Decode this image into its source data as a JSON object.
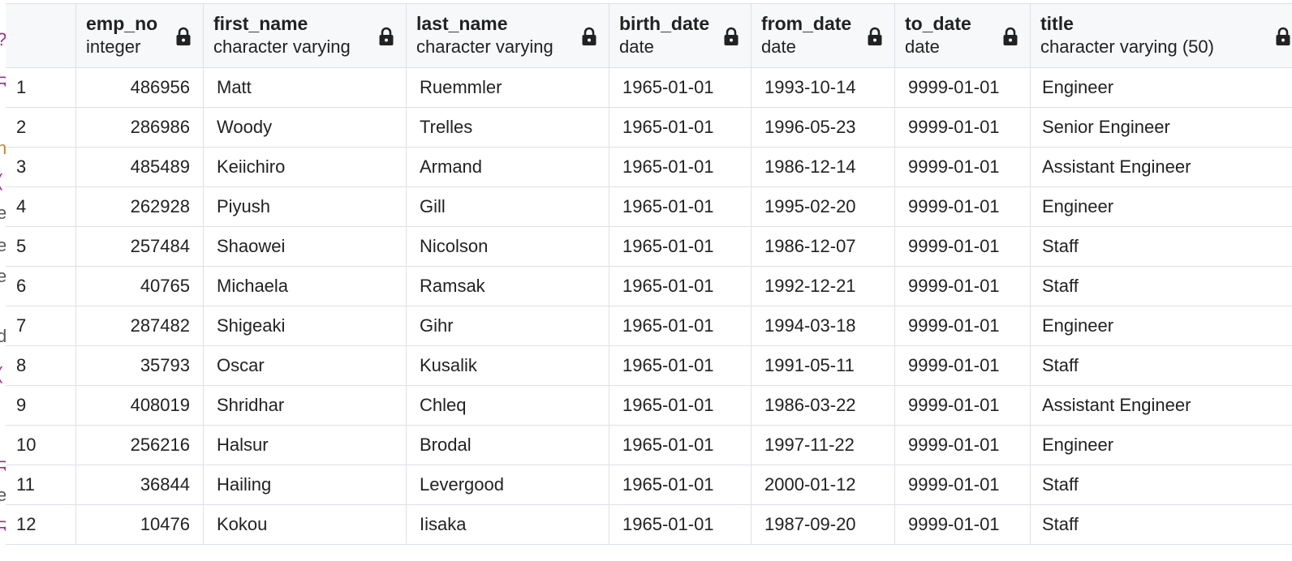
{
  "colors": {
    "grid_border": "#dde0e6",
    "header_bg": "#f7f8fa",
    "text": "#222222",
    "left_strip_purple": "#a0289a",
    "left_strip_orange": "#c8862a",
    "left_strip_gray": "#555555"
  },
  "left_strip": [
    {
      "glyph": "?",
      "color": "#a0289a"
    },
    {
      "glyph": "R",
      "color": "#a0289a"
    },
    {
      "glyph": "n",
      "color": "#c8862a"
    },
    {
      "glyph": "(",
      "color": "#a0289a"
    },
    {
      "glyph": "e",
      "color": "#555555"
    },
    {
      "glyph": "e",
      "color": "#555555"
    },
    {
      "glyph": "e",
      "color": "#555555"
    },
    {
      "glyph": "l",
      "color": "#555555"
    },
    {
      "glyph": "d",
      "color": "#555555"
    },
    {
      "glyph": "(",
      "color": "#a0289a"
    },
    {
      "glyph": "R",
      "color": "#a0289a"
    },
    {
      "glyph": "e",
      "color": "#555555"
    },
    {
      "glyph": "R",
      "color": "#a0289a"
    }
  ],
  "columns": [
    {
      "name": "emp_no",
      "type": "integer",
      "icon": "lock-icon"
    },
    {
      "name": "first_name",
      "type": "character varying",
      "icon": "lock-icon"
    },
    {
      "name": "last_name",
      "type": "character varying",
      "icon": "lock-icon"
    },
    {
      "name": "birth_date",
      "type": "date",
      "icon": "lock-icon"
    },
    {
      "name": "from_date",
      "type": "date",
      "icon": "lock-icon"
    },
    {
      "name": "to_date",
      "type": "date",
      "icon": "lock-icon"
    },
    {
      "name": "title",
      "type": "character varying (50)",
      "icon": "lock-icon"
    }
  ],
  "rows": [
    {
      "n": "1",
      "emp_no": "486956",
      "first_name": "Matt",
      "last_name": "Ruemmler",
      "birth_date": "1965-01-01",
      "from_date": "1993-10-14",
      "to_date": "9999-01-01",
      "title": "Engineer"
    },
    {
      "n": "2",
      "emp_no": "286986",
      "first_name": "Woody",
      "last_name": "Trelles",
      "birth_date": "1965-01-01",
      "from_date": "1996-05-23",
      "to_date": "9999-01-01",
      "title": "Senior Engineer"
    },
    {
      "n": "3",
      "emp_no": "485489",
      "first_name": "Keiichiro",
      "last_name": "Armand",
      "birth_date": "1965-01-01",
      "from_date": "1986-12-14",
      "to_date": "9999-01-01",
      "title": "Assistant Engineer"
    },
    {
      "n": "4",
      "emp_no": "262928",
      "first_name": "Piyush",
      "last_name": "Gill",
      "birth_date": "1965-01-01",
      "from_date": "1995-02-20",
      "to_date": "9999-01-01",
      "title": "Engineer"
    },
    {
      "n": "5",
      "emp_no": "257484",
      "first_name": "Shaowei",
      "last_name": "Nicolson",
      "birth_date": "1965-01-01",
      "from_date": "1986-12-07",
      "to_date": "9999-01-01",
      "title": "Staff"
    },
    {
      "n": "6",
      "emp_no": "40765",
      "first_name": "Michaela",
      "last_name": "Ramsak",
      "birth_date": "1965-01-01",
      "from_date": "1992-12-21",
      "to_date": "9999-01-01",
      "title": "Staff"
    },
    {
      "n": "7",
      "emp_no": "287482",
      "first_name": "Shigeaki",
      "last_name": "Gihr",
      "birth_date": "1965-01-01",
      "from_date": "1994-03-18",
      "to_date": "9999-01-01",
      "title": "Engineer"
    },
    {
      "n": "8",
      "emp_no": "35793",
      "first_name": "Oscar",
      "last_name": "Kusalik",
      "birth_date": "1965-01-01",
      "from_date": "1991-05-11",
      "to_date": "9999-01-01",
      "title": "Staff"
    },
    {
      "n": "9",
      "emp_no": "408019",
      "first_name": "Shridhar",
      "last_name": "Chleq",
      "birth_date": "1965-01-01",
      "from_date": "1986-03-22",
      "to_date": "9999-01-01",
      "title": "Assistant Engineer"
    },
    {
      "n": "10",
      "emp_no": "256216",
      "first_name": "Halsur",
      "last_name": "Brodal",
      "birth_date": "1965-01-01",
      "from_date": "1997-11-22",
      "to_date": "9999-01-01",
      "title": "Engineer"
    },
    {
      "n": "11",
      "emp_no": "36844",
      "first_name": "Hailing",
      "last_name": "Levergood",
      "birth_date": "1965-01-01",
      "from_date": "2000-01-12",
      "to_date": "9999-01-01",
      "title": "Staff"
    },
    {
      "n": "12",
      "emp_no": "10476",
      "first_name": "Kokou",
      "last_name": "Iisaka",
      "birth_date": "1965-01-01",
      "from_date": "1987-09-20",
      "to_date": "9999-01-01",
      "title": "Staff"
    }
  ]
}
